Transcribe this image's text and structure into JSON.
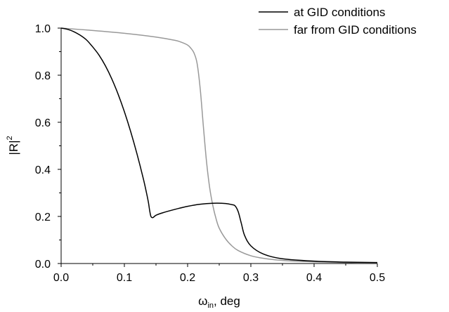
{
  "chart_data": {
    "type": "line",
    "title": "",
    "xlabel": "ω_in, deg",
    "xlabel_main": "ω",
    "xlabel_sub": "in",
    "xlabel_suffix": ", deg",
    "ylabel": "|R|²",
    "ylabel_main": "|R|",
    "ylabel_sup": "2",
    "xlim": [
      0.0,
      0.5
    ],
    "ylim": [
      0.0,
      1.0
    ],
    "xticks": [
      "0.0",
      "0.1",
      "0.2",
      "0.3",
      "0.4",
      "0.5"
    ],
    "yticks": [
      "0.0",
      "0.2",
      "0.4",
      "0.6",
      "0.8",
      "1.0"
    ],
    "grid": false,
    "legend_position": "top-right",
    "series": [
      {
        "name": "at GID conditions",
        "color": "#000000",
        "x": [
          0.0,
          0.01,
          0.02,
          0.03,
          0.04,
          0.05,
          0.06,
          0.07,
          0.08,
          0.09,
          0.1,
          0.11,
          0.12,
          0.13,
          0.135,
          0.138,
          0.14,
          0.142,
          0.145,
          0.15,
          0.16,
          0.18,
          0.2,
          0.22,
          0.24,
          0.26,
          0.27,
          0.275,
          0.28,
          0.285,
          0.29,
          0.3,
          0.32,
          0.35,
          0.4,
          0.45,
          0.5
        ],
        "y": [
          1.0,
          0.995,
          0.985,
          0.97,
          0.95,
          0.92,
          0.885,
          0.84,
          0.785,
          0.72,
          0.645,
          0.56,
          0.465,
          0.36,
          0.3,
          0.26,
          0.225,
          0.2,
          0.195,
          0.205,
          0.215,
          0.23,
          0.243,
          0.252,
          0.256,
          0.255,
          0.25,
          0.245,
          0.22,
          0.17,
          0.12,
          0.075,
          0.04,
          0.02,
          0.01,
          0.006,
          0.004
        ]
      },
      {
        "name": "far from GID conditions",
        "color": "#999999",
        "x": [
          0.0,
          0.05,
          0.1,
          0.15,
          0.18,
          0.19,
          0.2,
          0.205,
          0.21,
          0.215,
          0.22,
          0.225,
          0.23,
          0.235,
          0.24,
          0.245,
          0.25,
          0.26,
          0.27,
          0.28,
          0.3,
          0.32,
          0.35,
          0.4,
          0.45,
          0.5
        ],
        "y": [
          1.0,
          0.99,
          0.978,
          0.962,
          0.948,
          0.94,
          0.928,
          0.915,
          0.895,
          0.85,
          0.74,
          0.58,
          0.43,
          0.32,
          0.245,
          0.19,
          0.15,
          0.105,
          0.075,
          0.055,
          0.033,
          0.022,
          0.013,
          0.007,
          0.004,
          0.003
        ]
      }
    ]
  }
}
